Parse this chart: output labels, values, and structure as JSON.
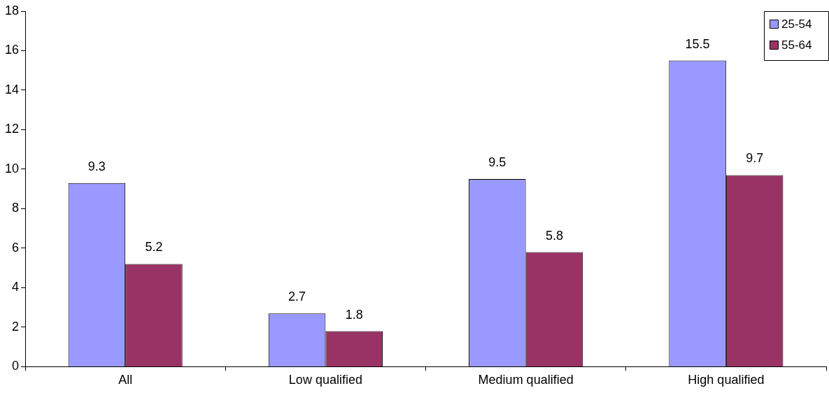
{
  "chart_data": {
    "type": "bar",
    "categories": [
      "All",
      "Low qualified",
      "Medium qualified",
      "High qualified"
    ],
    "series": [
      {
        "name": "25-54",
        "color": "#9999ff",
        "values": [
          9.3,
          2.7,
          9.5,
          15.5
        ]
      },
      {
        "name": "55-64",
        "color": "#993366",
        "values": [
          5.2,
          1.8,
          5.8,
          9.7
        ]
      }
    ],
    "ylim": [
      0,
      18
    ],
    "yticks": [
      0,
      2,
      4,
      6,
      8,
      10,
      12,
      14,
      16,
      18
    ],
    "grid": false,
    "legend": "top right",
    "data_labels": true
  }
}
